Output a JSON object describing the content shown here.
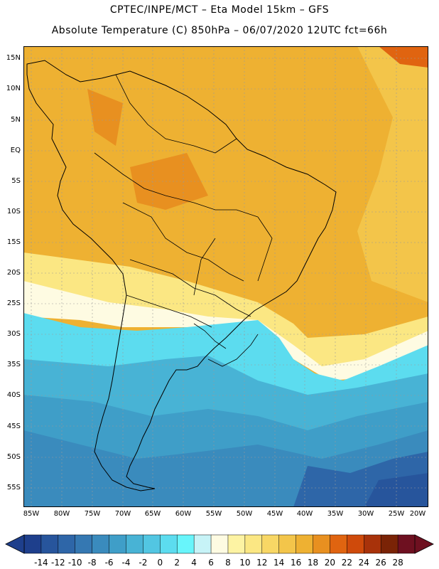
{
  "header": {
    "line1": "CPTEC/INPE/MCT –   Eta Model 15km – GFS",
    "line2": "Absolute Temperature (C) 850hPa – 06/07/2020 12UTC fct=66h"
  },
  "axes": {
    "lat_labels": [
      "15N",
      "10N",
      "5N",
      "EQ",
      "5S",
      "10S",
      "15S",
      "20S",
      "25S",
      "30S",
      "35S",
      "40S",
      "45S",
      "50S",
      "55S"
    ],
    "lon_labels": [
      "85W",
      "80W",
      "75W",
      "70W",
      "65W",
      "60W",
      "55W",
      "50W",
      "45W",
      "40W",
      "35W",
      "30W",
      "25W",
      "20W"
    ]
  },
  "colorbar": {
    "labels": [
      "-14",
      "-12",
      "-10",
      "-8",
      "-6",
      "-4",
      "-2",
      "0",
      "2",
      "4",
      "6",
      "8",
      "10",
      "12",
      "14",
      "16",
      "18",
      "20",
      "22",
      "24",
      "26",
      "28"
    ],
    "colors": [
      "#1e3f8c",
      "#27559c",
      "#2e66a8",
      "#3578b2",
      "#3a8bbd",
      "#3f9ec8",
      "#48b3d5",
      "#52c6e2",
      "#5cdcef",
      "#68f5fb",
      "#c7f3f7",
      "#fefbe2",
      "#fdf3a3",
      "#fbe783",
      "#f8d765",
      "#f3c54a",
      "#eeb132",
      "#e89020",
      "#e06410",
      "#cf4a0b",
      "#a8320a",
      "#7a2306",
      "#6e1020"
    ],
    "unit": "C"
  },
  "map": {
    "projection_note": "South America",
    "field": "850 hPa temperature"
  }
}
